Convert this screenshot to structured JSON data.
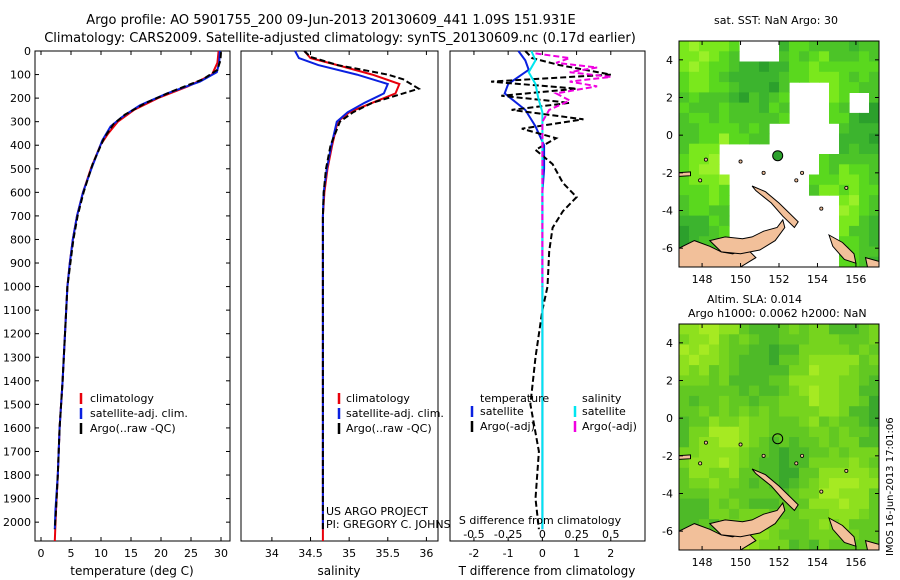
{
  "header": {
    "line1": "Argo profile: AO 5901755_200 09-Jun-2013 20130609_441 1.09S 151.931E",
    "line2": "Climatology: CARS2009. Satellite-adjusted climatology: synTS_20130609.nc (0.17d earlier)"
  },
  "timestamp": "IMOS 16-Jun-2013 17:01:06",
  "colors": {
    "climatology": "#e8000b",
    "satellite": "#0a20e0",
    "argo": "#000000",
    "sal_satellite": "#00e6f0",
    "sal_argo": "#f000e0",
    "land": "#f2c09a",
    "ocean_bright": "#66e61a",
    "ocean_dark": "#2ca02c"
  },
  "chart_data": [
    {
      "type": "line",
      "id": "temperature",
      "xlabel": "temperature (deg C)",
      "ylabel": "",
      "xlim": [
        -1,
        31.5
      ],
      "ylim": [
        2080,
        0
      ],
      "x_ticks": [
        0,
        5,
        10,
        15,
        20,
        25,
        30
      ],
      "y_ticks": [
        0,
        100,
        200,
        300,
        400,
        500,
        600,
        700,
        800,
        900,
        1000,
        1100,
        1200,
        1300,
        1400,
        1500,
        1600,
        1700,
        1800,
        1900,
        2000
      ],
      "legend": [
        "climatology",
        "satellite-adj. clim.",
        "Argo(..raw -QC)"
      ],
      "series": [
        {
          "name": "climatology",
          "style": "solid",
          "color": "#e8000b",
          "points": [
            [
              29.6,
              0
            ],
            [
              29.4,
              50
            ],
            [
              28.5,
              100
            ],
            [
              24.5,
              150
            ],
            [
              19.5,
              200
            ],
            [
              15.5,
              250
            ],
            [
              12.8,
              300
            ],
            [
              11.2,
              350
            ],
            [
              9.9,
              400
            ],
            [
              8.3,
              500
            ],
            [
              7.0,
              600
            ],
            [
              6.0,
              700
            ],
            [
              5.3,
              800
            ],
            [
              4.8,
              900
            ],
            [
              4.4,
              1000
            ],
            [
              4.0,
              1200
            ],
            [
              3.6,
              1400
            ],
            [
              3.1,
              1600
            ],
            [
              2.8,
              1800
            ],
            [
              2.5,
              1950
            ],
            [
              2.3,
              2080
            ]
          ]
        },
        {
          "name": "satellite-adj. clim.",
          "style": "solid",
          "color": "#0a20e0",
          "points": [
            [
              29.8,
              0
            ],
            [
              29.7,
              50
            ],
            [
              29.3,
              90
            ],
            [
              26.5,
              130
            ],
            [
              21.0,
              180
            ],
            [
              16.5,
              230
            ],
            [
              13.5,
              280
            ],
            [
              11.6,
              320
            ],
            [
              10.2,
              380
            ],
            [
              8.4,
              500
            ],
            [
              7.0,
              600
            ],
            [
              6.0,
              700
            ],
            [
              5.3,
              800
            ],
            [
              4.8,
              900
            ],
            [
              4.4,
              1000
            ],
            [
              4.0,
              1200
            ],
            [
              3.6,
              1400
            ],
            [
              3.1,
              1600
            ],
            [
              2.8,
              1800
            ],
            [
              2.4,
              1950
            ],
            [
              2.3,
              2030
            ]
          ]
        },
        {
          "name": "Argo(..raw -QC)",
          "style": "dashed",
          "color": "#000000",
          "points": [
            [
              30.0,
              5
            ],
            [
              29.9,
              40
            ],
            [
              29.4,
              80
            ],
            [
              27.0,
              120
            ],
            [
              22.0,
              170
            ],
            [
              17.5,
              220
            ],
            [
              14.0,
              270
            ],
            [
              12.1,
              310
            ],
            [
              10.5,
              370
            ],
            [
              8.6,
              480
            ],
            [
              7.1,
              600
            ],
            [
              6.1,
              700
            ],
            [
              5.4,
              800
            ],
            [
              4.9,
              900
            ],
            [
              4.4,
              1000
            ],
            [
              4.0,
              1200
            ],
            [
              3.6,
              1400
            ],
            [
              3.1,
              1600
            ],
            [
              2.8,
              1800
            ],
            [
              2.5,
              1950
            ],
            [
              2.3,
              2030
            ]
          ]
        }
      ]
    },
    {
      "type": "line",
      "id": "salinity",
      "xlabel": "salinity",
      "xlim": [
        33.6,
        36.15
      ],
      "ylim": [
        2080,
        0
      ],
      "x_ticks": [
        34,
        34.5,
        35,
        35.5,
        36
      ],
      "legend": [
        "climatology",
        "satellite-adj. clim.",
        "Argo(..raw -QC)"
      ],
      "annotation": [
        "US ARGO PROJECT",
        "PI: GREGORY C. JOHNSON"
      ],
      "series": [
        {
          "name": "climatology",
          "style": "solid",
          "color": "#e8000b",
          "points": [
            [
              34.42,
              0
            ],
            [
              34.5,
              30
            ],
            [
              34.85,
              60
            ],
            [
              35.3,
              100
            ],
            [
              35.65,
              140
            ],
            [
              35.6,
              180
            ],
            [
              35.3,
              220
            ],
            [
              35.0,
              260
            ],
            [
              34.85,
              300
            ],
            [
              34.78,
              400
            ],
            [
              34.72,
              500
            ],
            [
              34.68,
              600
            ],
            [
              34.66,
              700
            ],
            [
              34.66,
              900
            ],
            [
              34.66,
              1200
            ],
            [
              34.66,
              1600
            ],
            [
              34.66,
              2000
            ],
            [
              34.66,
              2080
            ]
          ]
        },
        {
          "name": "satellite-adj. clim.",
          "style": "solid",
          "color": "#0a20e0",
          "points": [
            [
              34.3,
              0
            ],
            [
              34.35,
              30
            ],
            [
              34.6,
              60
            ],
            [
              35.1,
              100
            ],
            [
              35.5,
              140
            ],
            [
              35.45,
              180
            ],
            [
              35.2,
              220
            ],
            [
              34.98,
              260
            ],
            [
              34.84,
              300
            ],
            [
              34.77,
              400
            ],
            [
              34.71,
              500
            ],
            [
              34.67,
              600
            ],
            [
              34.66,
              700
            ],
            [
              34.66,
              900
            ],
            [
              34.66,
              1200
            ],
            [
              34.66,
              1600
            ],
            [
              34.66,
              2030
            ]
          ]
        },
        {
          "name": "Argo(..raw -QC)",
          "style": "dashed",
          "color": "#000000",
          "points": [
            [
              34.42,
              0
            ],
            [
              34.5,
              25
            ],
            [
              34.85,
              60
            ],
            [
              35.5,
              100
            ],
            [
              35.7,
              120
            ],
            [
              35.9,
              160
            ],
            [
              35.7,
              180
            ],
            [
              35.3,
              220
            ],
            [
              35.05,
              260
            ],
            [
              34.88,
              300
            ],
            [
              34.76,
              400
            ],
            [
              34.7,
              500
            ],
            [
              34.67,
              600
            ],
            [
              34.66,
              700
            ],
            [
              34.66,
              1000
            ],
            [
              34.66,
              1500
            ],
            [
              34.66,
              2030
            ]
          ]
        }
      ]
    },
    {
      "type": "line",
      "id": "difference",
      "xlabel": "T difference from climatology",
      "x2label": "S difference from climatology",
      "xlim": [
        -2.7,
        3.0
      ],
      "x2lim": [
        -0.675,
        0.75
      ],
      "ylim": [
        2080,
        0
      ],
      "x_ticks": [
        -2,
        -1,
        0,
        1,
        2
      ],
      "x2_ticks": [
        -0.5,
        -0.25,
        0,
        0.25,
        0.5
      ],
      "x2_tick_labels": [
        "-0.5",
        "-0.25",
        "0",
        "0.25",
        "0.5"
      ],
      "legend_left": [
        "temperature",
        "satellite",
        "Argo(-adj)"
      ],
      "legend_right": [
        "salinity",
        "satellite",
        "Argo(-adj)"
      ],
      "series": [
        {
          "name": "T satellite",
          "style": "solid",
          "color": "#0a20e0",
          "points": [
            [
              -0.7,
              0
            ],
            [
              -0.5,
              40
            ],
            [
              -0.4,
              80
            ],
            [
              -1.0,
              140
            ],
            [
              -1.1,
              180
            ],
            [
              -0.5,
              250
            ],
            [
              -0.2,
              320
            ],
            [
              0.05,
              400
            ],
            [
              0.05,
              500
            ],
            [
              0.0,
              600
            ],
            [
              0.0,
              800
            ],
            [
              0.0,
              1000
            ],
            [
              0.0,
              1400
            ],
            [
              0.0,
              1800
            ],
            [
              0.0,
              2030
            ]
          ]
        },
        {
          "name": "T Argo(-adj)",
          "style": "dashed",
          "color": "#000000",
          "points": [
            [
              -0.5,
              0
            ],
            [
              -0.3,
              30
            ],
            [
              0.5,
              60
            ],
            [
              2.0,
              100
            ],
            [
              -1.5,
              130
            ],
            [
              1.0,
              160
            ],
            [
              -1.2,
              190
            ],
            [
              0.8,
              220
            ],
            [
              -0.9,
              250
            ],
            [
              1.2,
              290
            ],
            [
              -0.6,
              330
            ],
            [
              0.4,
              370
            ],
            [
              -0.2,
              420
            ],
            [
              0.3,
              480
            ],
            [
              0.6,
              560
            ],
            [
              1.0,
              620
            ],
            [
              0.6,
              680
            ],
            [
              0.3,
              750
            ],
            [
              0.2,
              850
            ],
            [
              0.15,
              1000
            ],
            [
              0.0,
              1100
            ],
            [
              -0.2,
              1300
            ],
            [
              -0.35,
              1500
            ],
            [
              -0.1,
              1700
            ],
            [
              -0.2,
              1900
            ],
            [
              -0.1,
              2030
            ]
          ]
        },
        {
          "name": "S satellite",
          "style": "solid",
          "color": "#00e6f0",
          "points": [
            [
              -0.08,
              0
            ],
            [
              -0.05,
              40
            ],
            [
              -0.1,
              90
            ],
            [
              -0.05,
              140
            ],
            [
              -0.03,
              200
            ],
            [
              0.0,
              260
            ],
            [
              0.0,
              320
            ],
            [
              0.0,
              400
            ],
            [
              0.0,
              600
            ],
            [
              0.0,
              1000
            ],
            [
              0.0,
              1500
            ],
            [
              0.0,
              2030
            ]
          ]
        },
        {
          "name": "S Argo(-adj)",
          "style": "dashed",
          "color": "#f000e0",
          "points": [
            [
              -0.05,
              10
            ],
            [
              0.2,
              30
            ],
            [
              0.1,
              50
            ],
            [
              0.4,
              70
            ],
            [
              0.2,
              90
            ],
            [
              0.5,
              110
            ],
            [
              0.2,
              130
            ],
            [
              0.4,
              150
            ],
            [
              0.1,
              180
            ],
            [
              0.2,
              210
            ],
            [
              0.05,
              250
            ],
            [
              0.0,
              300
            ],
            [
              0.0,
              500
            ],
            [
              0.0,
              1000
            ]
          ]
        }
      ]
    },
    {
      "type": "heatmap",
      "id": "sst_map",
      "title": "sat. SST: NaN Argo: 30",
      "x_ticks": [
        148,
        150,
        152,
        154,
        156
      ],
      "y_ticks": [
        4,
        2,
        0,
        -2,
        -4,
        -6
      ],
      "xlim": [
        146.8,
        157.2
      ],
      "ylim": [
        -7.0,
        5.0
      ],
      "float_position": [
        151.93,
        -1.09
      ]
    },
    {
      "type": "heatmap",
      "id": "sla_map",
      "title": [
        "Altim. SLA: 0.014",
        "Argo h1000: 0.0062 h2000: NaN"
      ],
      "x_ticks": [
        148,
        150,
        152,
        154,
        156
      ],
      "y_ticks": [
        4,
        2,
        0,
        -2,
        -4,
        -6
      ],
      "xlim": [
        146.8,
        157.2
      ],
      "ylim": [
        -7.0,
        5.0
      ],
      "float_position": [
        151.93,
        -1.09
      ]
    }
  ]
}
